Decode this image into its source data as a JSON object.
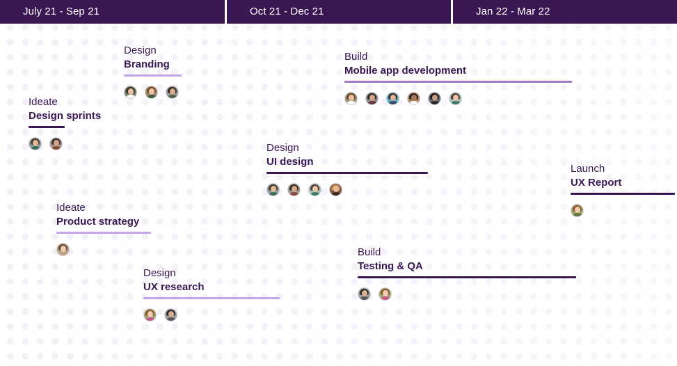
{
  "header": {
    "periods": [
      "July 21 - Sep 21",
      "Oct 21 - Dec 21",
      "Jan 22 - Mar 22"
    ]
  },
  "tasks": [
    {
      "phase": "Design",
      "name": "Branding",
      "avatar_count": 3
    },
    {
      "phase": "Ideate",
      "name": "Design sprints",
      "avatar_count": 2
    },
    {
      "phase": "Ideate",
      "name": "Product strategy",
      "avatar_count": 1
    },
    {
      "phase": "Design",
      "name": "UX research",
      "avatar_count": 2
    },
    {
      "phase": "Build",
      "name": "Mobile app development",
      "avatar_count": 6
    },
    {
      "phase": "Design",
      "name": "UI design",
      "avatar_count": 4
    },
    {
      "phase": "Build",
      "name": "Testing & QA",
      "avatar_count": 2
    },
    {
      "phase": "Launch",
      "name": "UX Report",
      "avatar_count": 1
    }
  ],
  "colors": {
    "header_bg": "#3a1753",
    "text": "#3a1753",
    "bar_dark": "#3a1753",
    "bar_light": "#c3a6e8",
    "bar_mid": "#9d7bc4",
    "dot_pattern": "#f3f0f8"
  },
  "icons": {
    "avatar": "user-avatar-icon"
  }
}
